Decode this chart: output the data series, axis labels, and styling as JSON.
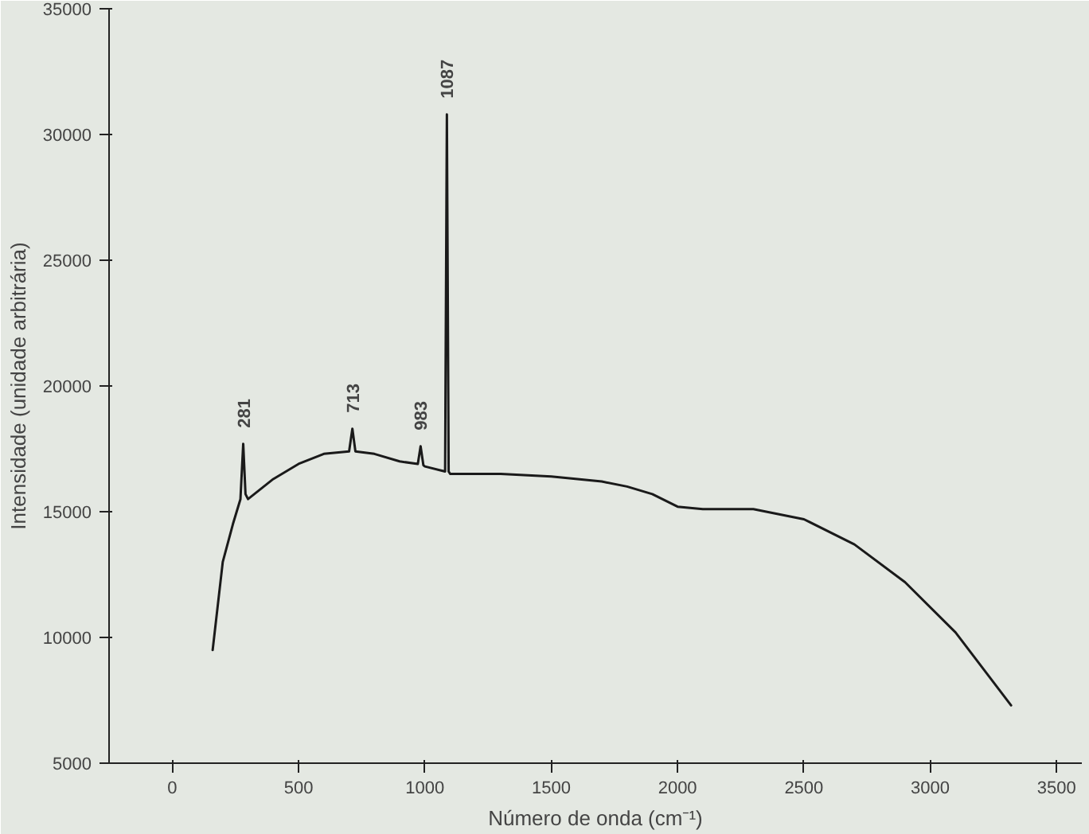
{
  "chart_data": {
    "type": "line",
    "xlabel": "Número de onda (cm⁻¹)",
    "ylabel": "Intensidade (unidade arbitrária)",
    "xlim": [
      -250,
      3600
    ],
    "ylim": [
      5000,
      35000
    ],
    "xticks": [
      0,
      500,
      1000,
      1500,
      2000,
      2500,
      3000,
      3500
    ],
    "yticks": [
      5000,
      10000,
      15000,
      20000,
      25000,
      30000,
      35000
    ],
    "marker": "none",
    "line_style": "solid",
    "series": [
      {
        "color": "#1a1a1a",
        "x": [
          160,
          200,
          240,
          270,
          281,
          290,
          300,
          400,
          500,
          600,
          700,
          713,
          725,
          800,
          900,
          972,
          983,
          994,
          1000,
          1080,
          1087,
          1094,
          1100,
          1300,
          1500,
          1700,
          1800,
          1900,
          2000,
          2100,
          2300,
          2500,
          2700,
          2900,
          3100,
          3320
        ],
        "values": [
          9500,
          13000,
          14500,
          15500,
          17700,
          15700,
          15500,
          16300,
          16900,
          17300,
          17400,
          18300,
          17400,
          17300,
          17000,
          16900,
          17600,
          16850,
          16800,
          16600,
          30800,
          16600,
          16500,
          16500,
          16400,
          16200,
          16000,
          15700,
          15200,
          15100,
          15100,
          14700,
          13700,
          12200,
          10200,
          7300
        ]
      }
    ],
    "annotations": [
      {
        "text": "281",
        "x": 281,
        "y": 17700
      },
      {
        "text": "713",
        "x": 713,
        "y": 18300
      },
      {
        "text": "983",
        "x": 983,
        "y": 17600
      },
      {
        "text": "1087",
        "x": 1087,
        "y": 30800
      }
    ]
  }
}
